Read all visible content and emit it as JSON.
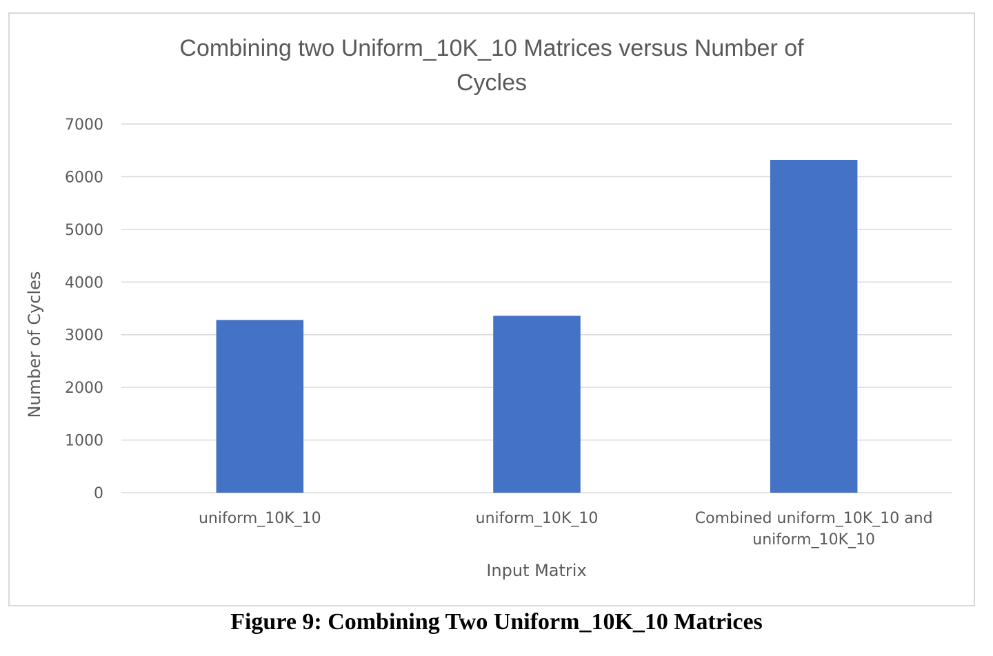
{
  "chart_data": {
    "type": "bar",
    "title_lines": [
      "Combining two Uniform_10K_10 Matrices versus Number of",
      "Cycles"
    ],
    "xlabel": "Input Matrix",
    "ylabel": "Number of Cycles",
    "categories": [
      [
        "uniform_10K_10"
      ],
      [
        "uniform_10K_10"
      ],
      [
        "Combined uniform_10K_10 and",
        "uniform_10K_10"
      ]
    ],
    "values": [
      3280,
      3360,
      6320
    ],
    "ylim": [
      0,
      7000
    ],
    "yticks": [
      0,
      1000,
      2000,
      3000,
      4000,
      5000,
      6000,
      7000
    ],
    "grid": true,
    "legend": "none",
    "bar_color": "#4472c4",
    "grid_color": "#d9d9d9"
  },
  "caption": "Figure 9: Combining Two Uniform_10K_10 Matrices"
}
